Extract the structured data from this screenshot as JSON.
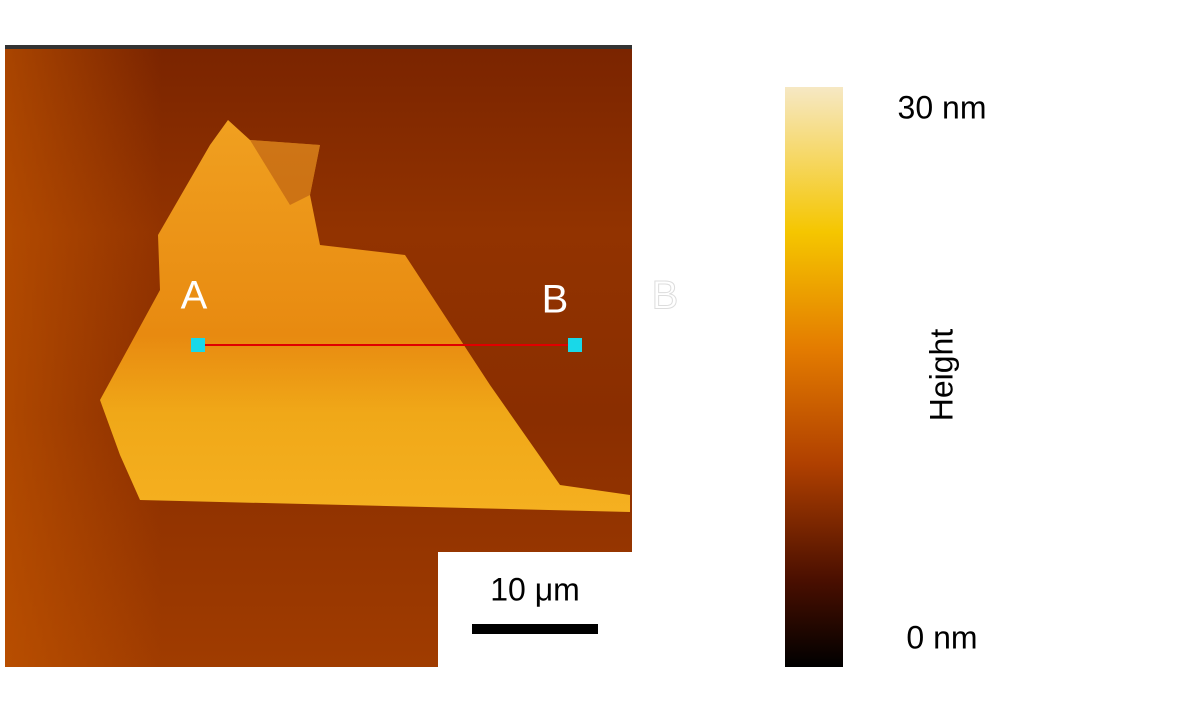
{
  "image": {
    "point_labels": [
      "A",
      "B"
    ],
    "ghost_label": "B",
    "scale_bar": "10 μm"
  },
  "colorbar": {
    "label": "Height",
    "range": [
      0,
      30
    ],
    "ticks": [
      {
        "value": 0,
        "label": "0 nm"
      },
      {
        "value": 30,
        "label": "30 nm"
      }
    ]
  }
}
